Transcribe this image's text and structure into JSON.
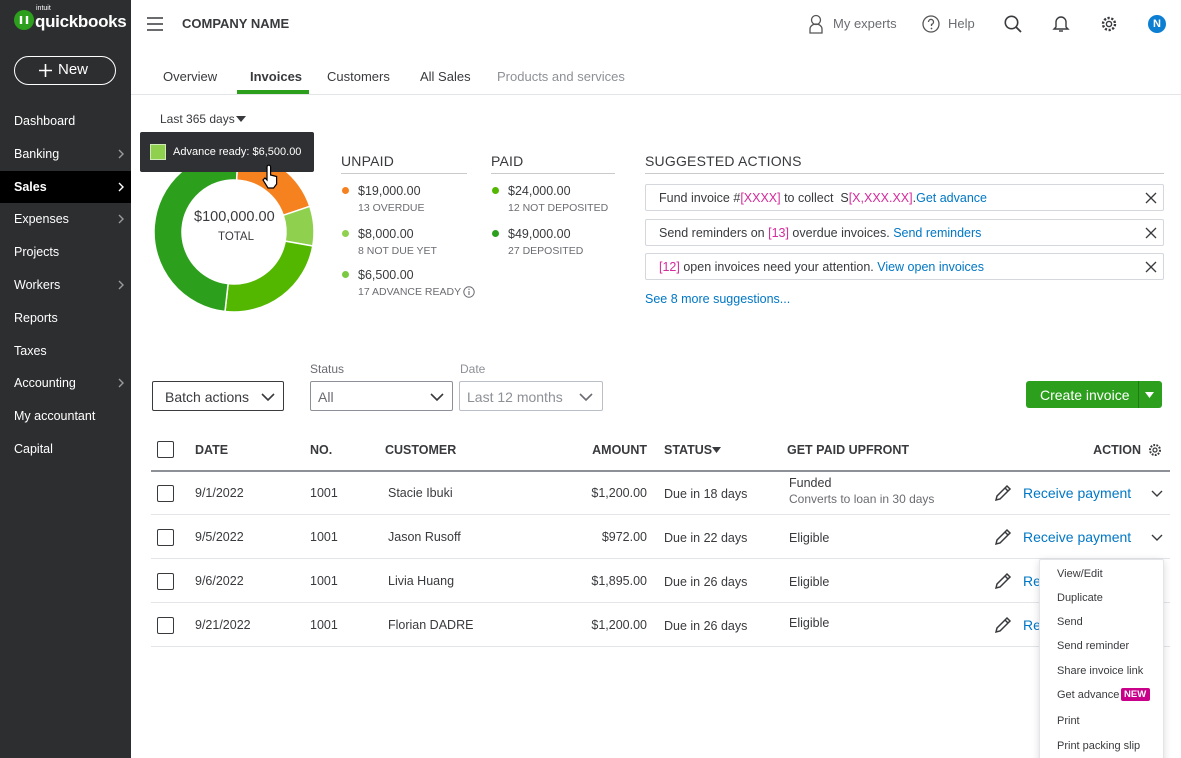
{
  "brand": {
    "small": "intuit",
    "name": "quickbooks"
  },
  "new_button": "New",
  "sidebar": [
    {
      "label": "Dashboard",
      "arrow": false
    },
    {
      "label": "Banking",
      "arrow": true
    },
    {
      "label": "Sales",
      "arrow": true,
      "active": true
    },
    {
      "label": "Expenses",
      "arrow": true
    },
    {
      "label": "Projects",
      "arrow": false
    },
    {
      "label": "Workers",
      "arrow": true
    },
    {
      "label": "Reports",
      "arrow": false
    },
    {
      "label": "Taxes",
      "arrow": false
    },
    {
      "label": "Accounting",
      "arrow": true
    },
    {
      "label": "My accountant",
      "arrow": false
    },
    {
      "label": "Capital",
      "arrow": false
    }
  ],
  "topbar": {
    "company": "COMPANY NAME",
    "my_experts": "My experts",
    "help": "Help",
    "avatar": "N"
  },
  "tabs": [
    {
      "label": "Overview"
    },
    {
      "label": "Invoices",
      "active": true
    },
    {
      "label": "Customers"
    },
    {
      "label": "All Sales"
    },
    {
      "label": "Products and services",
      "muted": true
    }
  ],
  "period": "Last 365 days",
  "tooltip": "Advance ready: $6,500.00",
  "donut": {
    "total": "$100,000.00",
    "total_label": "TOTAL"
  },
  "unpaid": {
    "title": "UNPAID",
    "items": [
      {
        "amount": "$19,000.00",
        "value": 19000,
        "note": "13 OVERDUE",
        "color": "#f5821f"
      },
      {
        "amount": "$8,000.00",
        "value": 8000,
        "note": "8 NOT DUE YET",
        "color": "#8fd14f"
      },
      {
        "amount": "$6,500.00",
        "note": "17 ADVANCE READY",
        "color": "#7ac943"
      }
    ]
  },
  "paid": {
    "title": "PAID",
    "items": [
      {
        "amount": "$24,000.00",
        "value": 24000,
        "note": "12 NOT DEPOSITED",
        "color": "#53b700"
      },
      {
        "amount": "$49,000.00",
        "value": 49000,
        "note": "27 DEPOSITED",
        "color": "#2ca01c"
      }
    ]
  },
  "suggested": {
    "title": "SUGGESTED ACTIONS",
    "items": [
      {
        "parts": [
          {
            "text": "Fund invoice #",
            "style": "plain"
          },
          {
            "text": "[XXXX]",
            "style": "field"
          },
          {
            "text": " to collect  S",
            "style": "plain"
          },
          {
            "text": "[X,XXX.XX]",
            "style": "field"
          },
          {
            "text": ".",
            "style": "plain"
          },
          {
            "text": "Get advance",
            "style": "link"
          }
        ]
      },
      {
        "parts": [
          {
            "text": "Send reminders on ",
            "style": "plain"
          },
          {
            "text": "[13]",
            "style": "field"
          },
          {
            "text": " overdue invoices. ",
            "style": "plain"
          },
          {
            "text": "Send reminders",
            "style": "link"
          }
        ]
      },
      {
        "parts": [
          {
            "text": "[12]",
            "style": "field"
          },
          {
            "text": " open invoices need your attention. ",
            "style": "plain"
          },
          {
            "text": "View open invoices",
            "style": "link"
          }
        ]
      }
    ],
    "more": "See 8 more suggestions..."
  },
  "filters": {
    "batch": "Batch actions",
    "status_label": "Status",
    "status_value": "All",
    "date_label": "Date",
    "date_value": "Last 12 months",
    "create": "Create invoice"
  },
  "table": {
    "headers": [
      "DATE",
      "NO.",
      "CUSTOMER",
      "AMOUNT",
      "STATUS",
      "GET PAID UPFRONT",
      "ACTION"
    ],
    "rows": [
      {
        "date": "9/1/2022",
        "no": "1001",
        "customer": "Stacie Ibuki",
        "amount": "$1,200.00",
        "status": "Due in 18 days",
        "upfront": "Funded",
        "upfront_note": "Converts to loan in 30 days",
        "action": "Receive payment"
      },
      {
        "date": "9/5/2022",
        "no": "1001",
        "customer": "Jason Rusoff",
        "amount": "$972.00",
        "status": "Due in 22 days",
        "upfront": "Eligible",
        "action": "Receive payment"
      },
      {
        "date": "9/6/2022",
        "no": "1001",
        "customer": "Livia Huang",
        "amount": "$1,895.00",
        "status": "Due in 26 days",
        "upfront": "Eligible",
        "action": "Receive payment"
      },
      {
        "date": "9/21/2022",
        "no": "1001",
        "customer": "Florian DADRE",
        "amount": "$1,200.00",
        "status": "Due in 26 days",
        "upfront": "Eligible",
        "action": "Receive payment"
      }
    ]
  },
  "menu": {
    "items": [
      "View/Edit",
      "Duplicate",
      "Send",
      "Send reminder",
      "Share invoice link",
      "Get advance",
      "Print",
      "Print packing slip"
    ],
    "badge": "NEW"
  }
}
